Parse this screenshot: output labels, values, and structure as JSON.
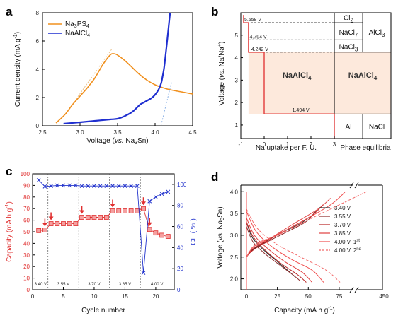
{
  "chart_data": [
    {
      "panel": "a",
      "type": "line",
      "xlabel": "Voltage (vs. Na3Sn)",
      "ylabel": "Current density (mA g-1)",
      "xlim": [
        2.5,
        4.5
      ],
      "ylim": [
        0,
        8
      ],
      "xticks": [
        "2.5",
        "3.0",
        "3.5",
        "4.0",
        "4.5"
      ],
      "yticks": [
        "0",
        "2",
        "4",
        "6",
        "8"
      ],
      "legend": "top-left",
      "series": [
        {
          "name": "Na3PS4",
          "color": "#f0901e",
          "x": [
            2.68,
            2.8,
            2.9,
            3.0,
            3.1,
            3.2,
            3.3,
            3.4,
            3.45,
            3.5,
            3.6,
            3.7,
            3.8,
            3.9,
            4.0,
            4.1,
            4.2,
            4.3,
            4.4,
            4.5
          ],
          "y": [
            0.2,
            0.8,
            1.5,
            2.1,
            2.7,
            3.4,
            4.3,
            5.0,
            5.1,
            5.0,
            4.6,
            4.1,
            3.6,
            3.2,
            2.9,
            2.7,
            2.55,
            2.45,
            2.35,
            2.25
          ]
        },
        {
          "name": "NaAlCl4",
          "color": "#1f2fd0",
          "x": [
            2.78,
            3.0,
            3.2,
            3.4,
            3.5,
            3.6,
            3.7,
            3.8,
            3.85,
            3.9,
            3.95,
            4.0,
            4.05,
            4.08,
            4.1,
            4.12,
            4.14,
            4.16,
            4.18,
            4.2
          ],
          "y": [
            0.15,
            0.25,
            0.35,
            0.45,
            0.5,
            0.7,
            1.0,
            1.5,
            1.65,
            1.8,
            1.95,
            2.2,
            2.6,
            3.0,
            3.5,
            4.1,
            5.0,
            6.0,
            7.0,
            8.0
          ]
        }
      ]
    },
    {
      "panel": "b",
      "type": "diagram",
      "xlabel": "Na uptake per F. U.",
      "ylabel": "Voltage (vs. Na/Na+)",
      "xlim": [
        -1,
        3
      ],
      "ylim": [
        0.4,
        6.0
      ],
      "xticks": [
        "-1",
        "0",
        "1",
        "2",
        "3"
      ],
      "yticks": [
        "1",
        "2",
        "3",
        "4",
        "5"
      ],
      "plateaus": [
        {
          "label": "5.558 V",
          "v": 5.558,
          "x_start": -0.88
        },
        {
          "label": "4.794 V",
          "v": 4.794,
          "x_start": -0.67
        },
        {
          "label": "4.242 V",
          "v": 4.242,
          "x_start": -0.67
        },
        {
          "label": "1.494 V",
          "v": 1.494,
          "x_start": 0.0
        }
      ],
      "regions": [
        "Cl2",
        "NaCl7",
        "NaCl3",
        "NaAlCl4"
      ],
      "phase_title": "Phase equilibria",
      "phases": {
        "cl2": "Cl2",
        "nacl7": "NaCl7",
        "nacl3": "NaCl3",
        "alcl3": "AlCl3",
        "naalcl4_right": "NaAlCl4",
        "al": "Al",
        "nacl": "NaCl"
      }
    },
    {
      "panel": "c",
      "type": "scatter",
      "xlabel": "Cycle number",
      "ylabel": "Capacity (mA h g-1)",
      "y2label": "CE ( % )",
      "xlim": [
        0,
        23
      ],
      "ylim": [
        0,
        100
      ],
      "y2lim": [
        0,
        110
      ],
      "xticks": [
        "0",
        "5",
        "10",
        "15",
        "20"
      ],
      "yticks": [
        "0",
        "10",
        "20",
        "30",
        "40",
        "50",
        "60",
        "70",
        "80",
        "90",
        "100"
      ],
      "y2ticks": [
        "0",
        "20",
        "40",
        "60",
        "80",
        "100"
      ],
      "dividers": [
        2.5,
        7.5,
        12.5,
        17.5
      ],
      "segment_labels": [
        {
          "text": "3.40 V",
          "x": 1.3
        },
        {
          "text": "3.55 V",
          "x": 5
        },
        {
          "text": "3.70 V",
          "x": 10
        },
        {
          "text": "3.85 V",
          "x": 15
        },
        {
          "text": "4.00 V",
          "x": 20.2
        }
      ],
      "arrow_cycles": [
        2,
        3,
        8,
        13,
        18,
        19
      ],
      "series": [
        {
          "name": "Capacity",
          "color": "#e03030",
          "x": [
            1,
            2,
            3,
            4,
            5,
            6,
            7,
            8,
            9,
            10,
            11,
            12,
            13,
            14,
            15,
            16,
            17,
            18,
            19,
            20,
            21,
            22
          ],
          "y": [
            51,
            51.5,
            57,
            57,
            57,
            57,
            57,
            62.5,
            62.5,
            62.5,
            62.5,
            62.5,
            68,
            68,
            68,
            68,
            68,
            70,
            52,
            49,
            47,
            46
          ]
        },
        {
          "name": "CE",
          "color": "#2233cc",
          "x": [
            1,
            2,
            3,
            4,
            5,
            6,
            7,
            8,
            9,
            10,
            11,
            12,
            13,
            14,
            15,
            16,
            17,
            18,
            19,
            20,
            21,
            22
          ],
          "y": [
            104,
            98,
            98.5,
            99,
            99,
            99,
            99,
            98.5,
            98.5,
            98.5,
            98.5,
            98.5,
            98.5,
            98.5,
            98.5,
            98.5,
            98.5,
            16,
            84,
            88,
            91,
            93
          ]
        }
      ]
    },
    {
      "panel": "d",
      "type": "line",
      "xlabel": "Capacity (mA h g-1)",
      "ylabel": "Voltage (vs. Na3Sn)",
      "xlim": [
        -5,
        110
      ],
      "ylim": [
        1.75,
        4.15
      ],
      "xticks": [
        "0",
        "25",
        "50",
        "75",
        "450"
      ],
      "yticks": [
        "2.0",
        "2.5",
        "3.0",
        "3.5",
        "4.0"
      ],
      "axis_break": "x",
      "legend": "right",
      "series": [
        {
          "name": "3.40 V",
          "color": "#2b2b2b",
          "dash": false,
          "cap": 50,
          "charge_y": [
            2.5,
            2.65,
            2.85,
            3.05,
            3.25,
            3.4
          ],
          "discharge_y": [
            3.3,
            2.95,
            2.7,
            2.45,
            2.2,
            2.05
          ]
        },
        {
          "name": "3.55 V",
          "color": "#8c2a2a",
          "dash": false,
          "cap": 56,
          "charge_y": [
            2.5,
            2.65,
            2.85,
            3.05,
            3.3,
            3.55
          ],
          "discharge_y": [
            3.2,
            2.85,
            2.6,
            2.35,
            2.1,
            1.95
          ]
        },
        {
          "name": "3.70 V",
          "color": "#b82222",
          "dash": false,
          "cap": 62,
          "charge_y": [
            2.5,
            2.65,
            2.9,
            3.15,
            3.45,
            3.7
          ],
          "discharge_y": [
            3.3,
            2.95,
            2.65,
            2.35,
            2.1,
            1.92
          ]
        },
        {
          "name": "3.85 V",
          "color": "#e04040",
          "dash": false,
          "cap": 68,
          "charge_y": [
            2.5,
            2.7,
            2.95,
            3.25,
            3.6,
            3.85
          ],
          "discharge_y": [
            3.4,
            3.0,
            2.7,
            2.4,
            2.15,
            1.92
          ]
        },
        {
          "name": "4.00 V, 1st",
          "color": "#f05050",
          "dash": false,
          "cap": 80,
          "charge_y": [
            2.5,
            2.75,
            3.0,
            3.3,
            3.7,
            4.0
          ],
          "discharge_y": [
            3.55,
            3.1,
            2.75,
            2.45,
            2.2,
            1.92
          ]
        },
        {
          "name": "4.00 V, 2nd",
          "color": "#f26a6a",
          "dash": true,
          "cap": 97,
          "charge_y": [
            2.5,
            2.8,
            3.05,
            3.4,
            3.8,
            4.0
          ],
          "discharge_y": [
            3.6,
            3.15,
            2.8,
            2.5,
            2.2,
            1.92
          ]
        }
      ]
    }
  ],
  "panels": {
    "a": {
      "letter": "a",
      "legend": {
        "s1_pre": "Na",
        "s1_sub1": "3",
        "s1_mid": "PS",
        "s1_sub2": "4",
        "s2_pre": "NaAlCl",
        "s2_sub": "4"
      },
      "xlabel": {
        "pre": "Voltage (",
        "ital": "vs.",
        "mid": " Na",
        "sub": "3",
        "post": "Sn)"
      },
      "ylabel": {
        "pre": "Current density (mA g",
        "sup": "-1",
        "post": ")"
      }
    },
    "b": {
      "letter": "b",
      "xlabel": "Na uptake per F. U.",
      "ylabel": {
        "pre": "Voltage (",
        "ital": "vs.",
        "mid": " Na/Na",
        "sup": "+",
        "post": ")"
      },
      "phase_title": "Phase equilibria",
      "region_center": {
        "pre": "NaAlCl",
        "sub": "4"
      },
      "cl2": {
        "pre": "Cl",
        "sub": "2"
      },
      "nacl7": {
        "pre": "NaCl",
        "sub": "7"
      },
      "nacl3": {
        "pre": "NaCl",
        "sub": "3"
      },
      "alcl3": {
        "pre": "AlCl",
        "sub": "3"
      },
      "naalcl4": {
        "pre": "NaAlCl",
        "sub": "4"
      },
      "al": "Al",
      "nacl": "NaCl"
    },
    "c": {
      "letter": "c",
      "xlabel": "Cycle number",
      "ylabel": {
        "pre": "Capacity (mA h g",
        "sup": "-1",
        "post": ")"
      },
      "y2label": "CE ( % )"
    },
    "d": {
      "letter": "d",
      "xlabel": {
        "pre": "Capacity (mA h g",
        "sup": "-1",
        "post": ")"
      },
      "ylabel": {
        "pre": "Voltage (vs. Na",
        "sub": "3",
        "post": "Sn)"
      },
      "legend_extra": {
        "first_pre": "4.00 V, 1",
        "first_sup": "st",
        "second_pre": "4.00 V, 2",
        "second_sup": "nd"
      }
    }
  },
  "colors": {
    "orange": "#f0901e",
    "blue": "#1f2fd0",
    "red": "#e03030",
    "peach": "#fde9dc",
    "crimson": "#e23b3b"
  }
}
